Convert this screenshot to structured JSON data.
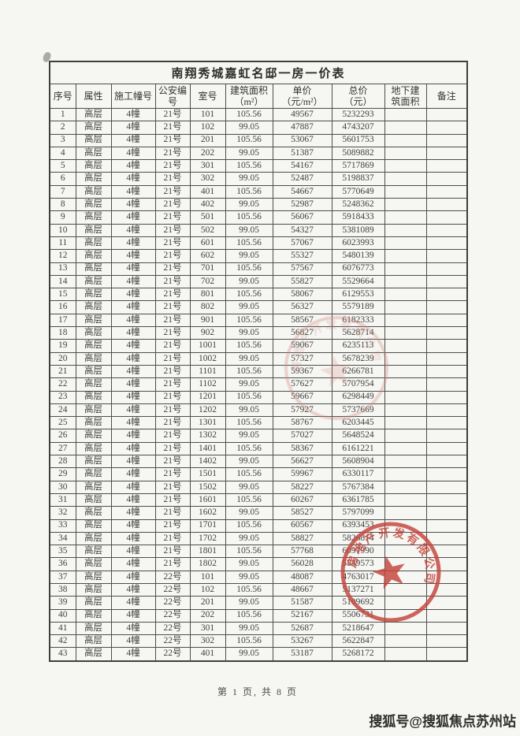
{
  "document": {
    "title": "南翔秀城嘉虹名邸一房一价表",
    "footer": "第 1 页, 共 8 页",
    "watermark": "搜狐号@搜狐焦点苏州站"
  },
  "table": {
    "columns": [
      "序号",
      "属性",
      "施工幢号",
      "公安编\n号",
      "室号",
      "建筑面积\n（m²）",
      "单价\n（元/m²）",
      "总价\n（元）",
      "地下建\n筑面积",
      "备注"
    ],
    "rows": [
      [
        "1",
        "高层",
        "4幢",
        "21号",
        "101",
        "105.56",
        "49567",
        "5232293",
        "",
        ""
      ],
      [
        "2",
        "高层",
        "4幢",
        "21号",
        "102",
        "99.05",
        "47887",
        "4743207",
        "",
        ""
      ],
      [
        "3",
        "高层",
        "4幢",
        "21号",
        "201",
        "105.56",
        "53067",
        "5601753",
        "",
        ""
      ],
      [
        "4",
        "高层",
        "4幢",
        "21号",
        "202",
        "99.05",
        "51387",
        "5089882",
        "",
        ""
      ],
      [
        "5",
        "高层",
        "4幢",
        "21号",
        "301",
        "105.56",
        "54167",
        "5717869",
        "",
        ""
      ],
      [
        "6",
        "高层",
        "4幢",
        "21号",
        "302",
        "99.05",
        "52487",
        "5198837",
        "",
        ""
      ],
      [
        "7",
        "高层",
        "4幢",
        "21号",
        "401",
        "105.56",
        "54667",
        "5770649",
        "",
        ""
      ],
      [
        "8",
        "高层",
        "4幢",
        "21号",
        "402",
        "99.05",
        "52987",
        "5248362",
        "",
        ""
      ],
      [
        "9",
        "高层",
        "4幢",
        "21号",
        "501",
        "105.56",
        "56067",
        "5918433",
        "",
        ""
      ],
      [
        "10",
        "高层",
        "4幢",
        "21号",
        "502",
        "99.05",
        "54327",
        "5381089",
        "",
        ""
      ],
      [
        "11",
        "高层",
        "4幢",
        "21号",
        "601",
        "105.56",
        "57067",
        "6023993",
        "",
        ""
      ],
      [
        "12",
        "高层",
        "4幢",
        "21号",
        "602",
        "99.05",
        "55327",
        "5480139",
        "",
        ""
      ],
      [
        "13",
        "高层",
        "4幢",
        "21号",
        "701",
        "105.56",
        "57567",
        "6076773",
        "",
        ""
      ],
      [
        "14",
        "高层",
        "4幢",
        "21号",
        "702",
        "99.05",
        "55827",
        "5529664",
        "",
        ""
      ],
      [
        "15",
        "高层",
        "4幢",
        "21号",
        "801",
        "105.56",
        "58067",
        "6129553",
        "",
        ""
      ],
      [
        "16",
        "高层",
        "4幢",
        "21号",
        "802",
        "99.05",
        "56327",
        "5579189",
        "",
        ""
      ],
      [
        "17",
        "高层",
        "4幢",
        "21号",
        "901",
        "105.56",
        "58567",
        "6182333",
        "",
        ""
      ],
      [
        "18",
        "高层",
        "4幢",
        "21号",
        "902",
        "99.05",
        "56827",
        "5628714",
        "",
        ""
      ],
      [
        "19",
        "高层",
        "4幢",
        "21号",
        "1001",
        "105.56",
        "59067",
        "6235113",
        "",
        ""
      ],
      [
        "20",
        "高层",
        "4幢",
        "21号",
        "1002",
        "99.05",
        "57327",
        "5678239",
        "",
        ""
      ],
      [
        "21",
        "高层",
        "4幢",
        "21号",
        "1101",
        "105.56",
        "59367",
        "6266781",
        "",
        ""
      ],
      [
        "22",
        "高层",
        "4幢",
        "21号",
        "1102",
        "99.05",
        "57627",
        "5707954",
        "",
        ""
      ],
      [
        "23",
        "高层",
        "4幢",
        "21号",
        "1201",
        "105.56",
        "59667",
        "6298449",
        "",
        ""
      ],
      [
        "24",
        "高层",
        "4幢",
        "21号",
        "1202",
        "99.05",
        "57927",
        "5737669",
        "",
        ""
      ],
      [
        "25",
        "高层",
        "4幢",
        "21号",
        "1301",
        "105.56",
        "58767",
        "6203445",
        "",
        ""
      ],
      [
        "26",
        "高层",
        "4幢",
        "21号",
        "1302",
        "99.05",
        "57027",
        "5648524",
        "",
        ""
      ],
      [
        "27",
        "高层",
        "4幢",
        "21号",
        "1401",
        "105.56",
        "58367",
        "6161221",
        "",
        ""
      ],
      [
        "28",
        "高层",
        "4幢",
        "21号",
        "1402",
        "99.05",
        "56627",
        "5608904",
        "",
        ""
      ],
      [
        "29",
        "高层",
        "4幢",
        "21号",
        "1501",
        "105.56",
        "59967",
        "6330117",
        "",
        ""
      ],
      [
        "30",
        "高层",
        "4幢",
        "21号",
        "1502",
        "99.05",
        "58227",
        "5767384",
        "",
        ""
      ],
      [
        "31",
        "高层",
        "4幢",
        "21号",
        "1601",
        "105.56",
        "60267",
        "6361785",
        "",
        ""
      ],
      [
        "32",
        "高层",
        "4幢",
        "21号",
        "1602",
        "99.05",
        "58527",
        "5797099",
        "",
        ""
      ],
      [
        "33",
        "高层",
        "4幢",
        "21号",
        "1701",
        "105.56",
        "60567",
        "6393453",
        "",
        ""
      ],
      [
        "34",
        "高层",
        "4幢",
        "21号",
        "1702",
        "99.05",
        "58827",
        "5826814",
        "",
        ""
      ],
      [
        "35",
        "高层",
        "4幢",
        "21号",
        "1801",
        "105.56",
        "57768",
        "6097990",
        "",
        ""
      ],
      [
        "36",
        "高层",
        "4幢",
        "21号",
        "1802",
        "99.05",
        "56028",
        "5549573",
        "",
        ""
      ],
      [
        "37",
        "高层",
        "4幢",
        "22号",
        "101",
        "99.05",
        "48087",
        "4763017",
        "",
        ""
      ],
      [
        "38",
        "高层",
        "4幢",
        "22号",
        "102",
        "105.56",
        "48667",
        "5137271",
        "",
        ""
      ],
      [
        "39",
        "高层",
        "4幢",
        "22号",
        "201",
        "99.05",
        "51587",
        "5109692",
        "",
        ""
      ],
      [
        "40",
        "高层",
        "4幢",
        "22号",
        "202",
        "105.56",
        "52167",
        "5506731",
        "",
        ""
      ],
      [
        "41",
        "高层",
        "4幢",
        "22号",
        "301",
        "99.05",
        "52687",
        "5218647",
        "",
        ""
      ],
      [
        "42",
        "高层",
        "4幢",
        "22号",
        "302",
        "105.56",
        "53267",
        "5622847",
        "",
        ""
      ],
      [
        "43",
        "高层",
        "4幢",
        "22号",
        "401",
        "99.05",
        "53187",
        "5268172",
        "",
        ""
      ]
    ]
  },
  "stamps": {
    "faint": {
      "arc_text": "房地产开发有限公司",
      "color": "#d08a7e"
    },
    "clear": {
      "arc_text": "房地产开发有限公司",
      "color": "#c4453a"
    }
  }
}
